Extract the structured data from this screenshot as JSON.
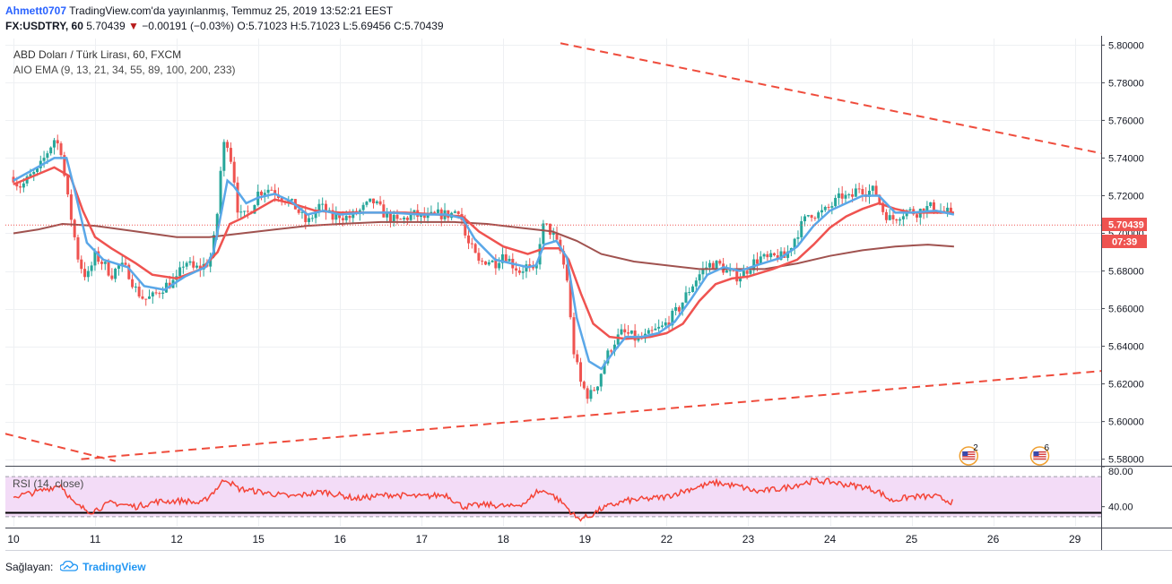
{
  "header": {
    "author": "Ahmett0707",
    "published_text": "TradingView.com'da yayınlanmış, Temmuz 25, 2019 13:52:21 EEST",
    "symbol": "FX:USDTRY, 60",
    "last": "5.70439",
    "change_arrow": "▼",
    "change": "−0.00191 (−0.03%)",
    "ohlc": "O:5.71023 H:5.71023 L:5.69456 C:5.70439"
  },
  "legend": {
    "title": "ABD Doları / Türk Lirası, 60, FXCM",
    "indicator": "AIO EMA (9, 13, 21, 34, 55, 89, 100, 200, 233)",
    "rsi": "RSI (14, close)"
  },
  "footer": {
    "prefix": "Sağlayan:",
    "brand": "TradingView"
  },
  "colors": {
    "bull": "#26a69a",
    "bear": "#ef5350",
    "ema_fast": "#5aa7e8",
    "ema_mid": "#ef5350",
    "ema_slow": "#a0524f",
    "trend": "#ef4b3b",
    "rsi": "#f44336",
    "rsi_band": "#f3dcf7",
    "price_tag": "#ef5350"
  },
  "chart_data": [
    {
      "type": "candlestick",
      "title": "ABD Doları / Türk Lirası, 60, FXCM",
      "y_axis": {
        "ylim": [
          5.5765,
          5.8035
        ],
        "ticks": [
          "5.80000",
          "5.78000",
          "5.76000",
          "5.74000",
          "5.72000",
          "5.70000",
          "5.68000",
          "5.66000",
          "5.64000",
          "5.62000",
          "5.60000",
          "5.58000"
        ],
        "side": "right"
      },
      "x_axis": {
        "labels": [
          "10",
          "11",
          "12",
          "15",
          "16",
          "17",
          "18",
          "19",
          "22",
          "23",
          "24",
          "25",
          "26",
          "29"
        ],
        "label_units": [
          0,
          1,
          2,
          3,
          4,
          5,
          6,
          7,
          8,
          9,
          10,
          11,
          12,
          13
        ]
      },
      "last_price_label": "5.70439",
      "countdown_label": "07:39",
      "waypoints": [
        [
          0.0,
          5.73
        ],
        [
          0.05,
          5.726
        ],
        [
          0.1,
          5.725
        ],
        [
          0.2,
          5.73
        ],
        [
          0.3,
          5.733
        ],
        [
          0.4,
          5.742
        ],
        [
          0.5,
          5.75
        ],
        [
          0.58,
          5.745
        ],
        [
          0.65,
          5.722
        ],
        [
          0.72,
          5.705
        ],
        [
          0.8,
          5.685
        ],
        [
          0.9,
          5.676
        ],
        [
          1.0,
          5.688
        ],
        [
          1.1,
          5.684
        ],
        [
          1.2,
          5.678
        ],
        [
          1.3,
          5.683
        ],
        [
          1.4,
          5.68
        ],
        [
          1.5,
          5.67
        ],
        [
          1.6,
          5.665
        ],
        [
          1.7,
          5.666
        ],
        [
          1.85,
          5.672
        ],
        [
          2.0,
          5.675
        ],
        [
          2.1,
          5.686
        ],
        [
          2.2,
          5.681
        ],
        [
          2.3,
          5.682
        ],
        [
          2.4,
          5.685
        ],
        [
          2.45,
          5.695
        ],
        [
          2.5,
          5.712
        ],
        [
          2.55,
          5.74
        ],
        [
          2.6,
          5.752
        ],
        [
          2.65,
          5.743
        ],
        [
          2.7,
          5.73
        ],
        [
          2.75,
          5.712
        ],
        [
          2.8,
          5.708
        ],
        [
          2.9,
          5.712
        ],
        [
          3.0,
          5.722
        ],
        [
          3.15,
          5.724
        ],
        [
          3.3,
          5.719
        ],
        [
          3.45,
          5.714
        ],
        [
          3.6,
          5.705
        ],
        [
          3.75,
          5.715
        ],
        [
          3.9,
          5.708
        ],
        [
          4.0,
          5.71
        ],
        [
          4.1,
          5.708
        ],
        [
          4.25,
          5.712
        ],
        [
          4.4,
          5.717
        ],
        [
          4.55,
          5.71
        ],
        [
          4.7,
          5.706
        ],
        [
          4.9,
          5.71
        ],
        [
          5.05,
          5.708
        ],
        [
          5.2,
          5.71
        ],
        [
          5.35,
          5.71
        ],
        [
          5.45,
          5.713
        ],
        [
          5.5,
          5.706
        ],
        [
          5.55,
          5.695
        ],
        [
          5.6,
          5.693
        ],
        [
          5.7,
          5.684
        ],
        [
          5.8,
          5.686
        ],
        [
          5.9,
          5.684
        ],
        [
          6.0,
          5.69
        ],
        [
          6.1,
          5.684
        ],
        [
          6.2,
          5.68
        ],
        [
          6.3,
          5.683
        ],
        [
          6.35,
          5.678
        ],
        [
          6.4,
          5.68
        ],
        [
          6.45,
          5.697
        ],
        [
          6.5,
          5.705
        ],
        [
          6.55,
          5.702
        ],
        [
          6.6,
          5.7
        ],
        [
          6.7,
          5.69
        ],
        [
          6.78,
          5.676
        ],
        [
          6.85,
          5.64
        ],
        [
          6.95,
          5.62
        ],
        [
          7.05,
          5.613
        ],
        [
          7.15,
          5.62
        ],
        [
          7.25,
          5.633
        ],
        [
          7.35,
          5.642
        ],
        [
          7.45,
          5.647
        ],
        [
          7.55,
          5.646
        ],
        [
          7.65,
          5.643
        ],
        [
          7.75,
          5.645
        ],
        [
          7.85,
          5.648
        ],
        [
          7.95,
          5.65
        ],
        [
          8.05,
          5.655
        ],
        [
          8.15,
          5.66
        ],
        [
          8.25,
          5.668
        ],
        [
          8.35,
          5.675
        ],
        [
          8.45,
          5.681
        ],
        [
          8.55,
          5.684
        ],
        [
          8.65,
          5.683
        ],
        [
          8.75,
          5.679
        ],
        [
          8.85,
          5.677
        ],
        [
          8.95,
          5.679
        ],
        [
          9.05,
          5.684
        ],
        [
          9.15,
          5.687
        ],
        [
          9.25,
          5.686
        ],
        [
          9.35,
          5.688
        ],
        [
          9.45,
          5.687
        ],
        [
          9.55,
          5.696
        ],
        [
          9.65,
          5.704
        ],
        [
          9.75,
          5.711
        ],
        [
          9.85,
          5.71
        ],
        [
          9.95,
          5.712
        ],
        [
          10.05,
          5.716
        ],
        [
          10.15,
          5.72
        ],
        [
          10.25,
          5.718
        ],
        [
          10.35,
          5.725
        ],
        [
          10.45,
          5.722
        ],
        [
          10.55,
          5.723
        ],
        [
          10.65,
          5.712
        ],
        [
          10.75,
          5.707
        ],
        [
          10.85,
          5.71
        ],
        [
          10.95,
          5.712
        ],
        [
          11.05,
          5.711
        ],
        [
          11.15,
          5.713
        ],
        [
          11.25,
          5.714
        ],
        [
          11.35,
          5.712
        ],
        [
          11.45,
          5.711
        ],
        [
          11.52,
          5.705
        ]
      ],
      "ema_fast": [
        [
          0.0,
          5.728
        ],
        [
          0.5,
          5.74
        ],
        [
          0.65,
          5.74
        ],
        [
          0.75,
          5.723
        ],
        [
          0.9,
          5.695
        ],
        [
          1.1,
          5.686
        ],
        [
          1.4,
          5.682
        ],
        [
          1.6,
          5.672
        ],
        [
          1.85,
          5.67
        ],
        [
          2.1,
          5.677
        ],
        [
          2.35,
          5.682
        ],
        [
          2.45,
          5.69
        ],
        [
          2.55,
          5.712
        ],
        [
          2.62,
          5.728
        ],
        [
          2.7,
          5.725
        ],
        [
          2.85,
          5.716
        ],
        [
          3.0,
          5.719
        ],
        [
          3.2,
          5.721
        ],
        [
          3.4,
          5.717
        ],
        [
          3.6,
          5.71
        ],
        [
          3.8,
          5.712
        ],
        [
          4.0,
          5.71
        ],
        [
          4.3,
          5.711
        ],
        [
          4.6,
          5.711
        ],
        [
          5.0,
          5.71
        ],
        [
          5.3,
          5.71
        ],
        [
          5.5,
          5.708
        ],
        [
          5.65,
          5.697
        ],
        [
          5.9,
          5.686
        ],
        [
          6.1,
          5.684
        ],
        [
          6.3,
          5.682
        ],
        [
          6.4,
          5.683
        ],
        [
          6.5,
          5.694
        ],
        [
          6.65,
          5.696
        ],
        [
          6.78,
          5.687
        ],
        [
          6.9,
          5.655
        ],
        [
          7.05,
          5.632
        ],
        [
          7.2,
          5.628
        ],
        [
          7.35,
          5.637
        ],
        [
          7.5,
          5.645
        ],
        [
          7.7,
          5.645
        ],
        [
          7.9,
          5.647
        ],
        [
          8.1,
          5.653
        ],
        [
          8.3,
          5.665
        ],
        [
          8.5,
          5.678
        ],
        [
          8.7,
          5.682
        ],
        [
          8.9,
          5.68
        ],
        [
          9.1,
          5.683
        ],
        [
          9.4,
          5.687
        ],
        [
          9.6,
          5.693
        ],
        [
          9.8,
          5.704
        ],
        [
          10.0,
          5.712
        ],
        [
          10.2,
          5.716
        ],
        [
          10.4,
          5.72
        ],
        [
          10.6,
          5.72
        ],
        [
          10.8,
          5.711
        ],
        [
          11.0,
          5.711
        ],
        [
          11.3,
          5.712
        ],
        [
          11.52,
          5.71
        ]
      ],
      "ema_mid": [
        [
          0.0,
          5.726
        ],
        [
          0.5,
          5.735
        ],
        [
          0.7,
          5.73
        ],
        [
          0.85,
          5.712
        ],
        [
          1.0,
          5.698
        ],
        [
          1.2,
          5.692
        ],
        [
          1.5,
          5.684
        ],
        [
          1.7,
          5.678
        ],
        [
          2.0,
          5.676
        ],
        [
          2.3,
          5.681
        ],
        [
          2.5,
          5.69
        ],
        [
          2.65,
          5.705
        ],
        [
          2.8,
          5.708
        ],
        [
          3.0,
          5.713
        ],
        [
          3.2,
          5.718
        ],
        [
          3.4,
          5.716
        ],
        [
          3.7,
          5.712
        ],
        [
          4.0,
          5.711
        ],
        [
          4.4,
          5.711
        ],
        [
          4.8,
          5.711
        ],
        [
          5.2,
          5.71
        ],
        [
          5.5,
          5.709
        ],
        [
          5.7,
          5.701
        ],
        [
          6.0,
          5.693
        ],
        [
          6.3,
          5.689
        ],
        [
          6.5,
          5.692
        ],
        [
          6.7,
          5.692
        ],
        [
          6.8,
          5.686
        ],
        [
          6.95,
          5.668
        ],
        [
          7.1,
          5.652
        ],
        [
          7.3,
          5.645
        ],
        [
          7.5,
          5.644
        ],
        [
          7.8,
          5.645
        ],
        [
          8.0,
          5.647
        ],
        [
          8.2,
          5.652
        ],
        [
          8.4,
          5.664
        ],
        [
          8.6,
          5.673
        ],
        [
          8.8,
          5.676
        ],
        [
          9.0,
          5.677
        ],
        [
          9.3,
          5.681
        ],
        [
          9.6,
          5.686
        ],
        [
          9.8,
          5.694
        ],
        [
          10.0,
          5.703
        ],
        [
          10.2,
          5.709
        ],
        [
          10.4,
          5.713
        ],
        [
          10.6,
          5.716
        ],
        [
          10.8,
          5.713
        ],
        [
          11.0,
          5.711
        ],
        [
          11.3,
          5.711
        ],
        [
          11.52,
          5.711
        ]
      ],
      "ema_slow": [
        [
          0.0,
          5.7
        ],
        [
          0.3,
          5.702
        ],
        [
          0.6,
          5.705
        ],
        [
          1.0,
          5.704
        ],
        [
          1.5,
          5.701
        ],
        [
          2.0,
          5.698
        ],
        [
          2.4,
          5.698
        ],
        [
          2.8,
          5.7
        ],
        [
          3.2,
          5.702
        ],
        [
          3.6,
          5.704
        ],
        [
          4.0,
          5.705
        ],
        [
          4.5,
          5.706
        ],
        [
          5.0,
          5.706
        ],
        [
          5.4,
          5.706
        ],
        [
          5.8,
          5.705
        ],
        [
          6.2,
          5.703
        ],
        [
          6.6,
          5.701
        ],
        [
          6.9,
          5.696
        ],
        [
          7.2,
          5.689
        ],
        [
          7.6,
          5.685
        ],
        [
          8.0,
          5.683
        ],
        [
          8.4,
          5.681
        ],
        [
          8.8,
          5.681
        ],
        [
          9.2,
          5.681
        ],
        [
          9.6,
          5.684
        ],
        [
          10.0,
          5.688
        ],
        [
          10.4,
          5.691
        ],
        [
          10.8,
          5.693
        ],
        [
          11.2,
          5.694
        ],
        [
          11.52,
          5.693
        ]
      ],
      "trendlines": [
        {
          "from": [
            6.7,
            5.801
          ],
          "to": [
            13.36,
            5.7422
          ]
        },
        {
          "from": [
            0.83,
            5.58
          ],
          "to": [
            13.36,
            5.627
          ]
        },
        {
          "from": [
            -0.1,
            5.5935
          ],
          "to": [
            1.25,
            5.579
          ]
        }
      ],
      "current_price": 5.70439,
      "events": [
        {
          "x": 11.7,
          "label": "2"
        },
        {
          "x": 12.57,
          "label": "6"
        }
      ]
    },
    {
      "type": "line",
      "title": "RSI (14, close)",
      "y_axis": {
        "ylim": [
          20,
          80
        ],
        "ticks": [
          "80.00",
          "40.00"
        ]
      },
      "band": [
        30,
        70
      ],
      "waypoints": [
        [
          0.0,
          50
        ],
        [
          0.3,
          55
        ],
        [
          0.58,
          62
        ],
        [
          0.75,
          42
        ],
        [
          0.95,
          35
        ],
        [
          1.2,
          44
        ],
        [
          1.5,
          40
        ],
        [
          1.75,
          45
        ],
        [
          2.1,
          46
        ],
        [
          2.3,
          43
        ],
        [
          2.45,
          55
        ],
        [
          2.6,
          68
        ],
        [
          2.75,
          58
        ],
        [
          3.0,
          55
        ],
        [
          3.4,
          50
        ],
        [
          3.8,
          55
        ],
        [
          4.2,
          48
        ],
        [
          4.6,
          52
        ],
        [
          5.0,
          50
        ],
        [
          5.3,
          52
        ],
        [
          5.5,
          40
        ],
        [
          5.8,
          42
        ],
        [
          6.1,
          40
        ],
        [
          6.3,
          45
        ],
        [
          6.4,
          55
        ],
        [
          6.55,
          55
        ],
        [
          6.75,
          42
        ],
        [
          6.9,
          28
        ],
        [
          7.05,
          30
        ],
        [
          7.2,
          38
        ],
        [
          7.5,
          46
        ],
        [
          7.8,
          48
        ],
        [
          8.0,
          50
        ],
        [
          8.3,
          58
        ],
        [
          8.6,
          64
        ],
        [
          8.9,
          60
        ],
        [
          9.1,
          55
        ],
        [
          9.4,
          58
        ],
        [
          9.6,
          62
        ],
        [
          9.8,
          66
        ],
        [
          10.0,
          65
        ],
        [
          10.2,
          62
        ],
        [
          10.4,
          60
        ],
        [
          10.6,
          55
        ],
        [
          10.75,
          46
        ],
        [
          11.0,
          50
        ],
        [
          11.3,
          50
        ],
        [
          11.52,
          44
        ]
      ]
    }
  ]
}
